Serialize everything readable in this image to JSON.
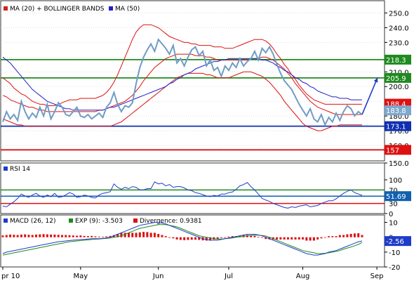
{
  "chart_data": [
    {
      "type": "line",
      "panel": "price",
      "legend": [
        {
          "label": "MA (20) + BOLLINGER BANDS",
          "color": "#d42020"
        },
        {
          "label": "MA (50)",
          "color": "#2020c8"
        }
      ],
      "ylim": [
        150,
        255
      ],
      "y_ticks": [
        "250.0",
        "240.0",
        "230.0",
        "220.0",
        "210.0",
        "200.0",
        "190.0",
        "180.0",
        "170.0",
        "160.0"
      ],
      "y_tick_values": [
        250,
        240,
        230,
        220,
        210,
        200,
        190,
        180,
        170,
        160
      ],
      "price_series": [
        176,
        183,
        178,
        181,
        177,
        190,
        183,
        178,
        182,
        179,
        186,
        180,
        188,
        178,
        183,
        189,
        186,
        181,
        180,
        183,
        186,
        180,
        179,
        181,
        178,
        180,
        182,
        179,
        186,
        189,
        196,
        188,
        183,
        187,
        186,
        189,
        202,
        213,
        220,
        225,
        229,
        224,
        232,
        229,
        226,
        222,
        228,
        216,
        219,
        214,
        220,
        225,
        227,
        221,
        224,
        214,
        218,
        211,
        213,
        207,
        214,
        211,
        216,
        213,
        219,
        214,
        217,
        219,
        224,
        218,
        226,
        223,
        227,
        222,
        215,
        209,
        204,
        201,
        198,
        193,
        188,
        184,
        180,
        185,
        178,
        176,
        181,
        174,
        179,
        176,
        182,
        177,
        183,
        187,
        185,
        180,
        183,
        181
      ],
      "ma20_series": [
        194,
        193,
        191,
        190,
        189,
        188,
        187,
        186,
        186,
        185,
        184,
        184,
        183,
        183,
        183,
        183,
        183,
        183,
        183,
        183,
        183,
        183,
        183,
        183,
        183,
        183,
        184,
        184,
        185,
        186,
        187,
        188,
        189,
        190,
        192,
        194,
        197,
        200,
        204,
        207,
        210,
        213,
        215,
        217,
        219,
        220,
        221,
        222,
        222,
        222,
        222,
        222,
        221,
        221,
        221,
        220,
        220,
        219,
        218,
        218,
        218,
        218,
        218,
        218,
        218,
        218,
        218,
        219,
        219,
        219,
        220,
        220,
        219,
        218,
        216,
        214,
        212,
        209,
        206,
        202,
        199,
        196,
        193,
        190,
        188,
        186,
        185,
        184,
        183,
        182,
        181,
        181,
        181,
        181,
        181,
        181,
        181,
        181
      ],
      "upper_band_series": [
        206,
        204,
        202,
        199,
        197,
        195,
        194,
        192,
        190,
        189,
        188,
        188,
        187,
        187,
        187,
        188,
        189,
        190,
        191,
        191,
        191,
        192,
        192,
        192,
        192,
        192,
        193,
        194,
        196,
        199,
        203,
        208,
        214,
        220,
        226,
        232,
        237,
        240,
        242,
        242,
        242,
        241,
        240,
        238,
        236,
        234,
        233,
        232,
        231,
        230,
        230,
        229,
        229,
        228,
        228,
        228,
        228,
        227,
        227,
        227,
        226,
        226,
        226,
        227,
        228,
        229,
        230,
        231,
        232,
        232,
        232,
        231,
        229,
        226,
        222,
        219,
        215,
        212,
        208,
        205,
        201,
        198,
        195,
        193,
        191,
        190,
        189,
        188,
        188,
        188,
        188,
        188,
        188,
        188,
        188,
        188,
        188,
        188
      ],
      "lower_band_series": [
        178,
        177,
        176,
        175,
        174,
        174,
        173,
        173,
        173,
        173,
        173,
        173,
        173,
        173,
        173,
        173,
        173,
        173,
        173,
        173,
        173,
        173,
        173,
        173,
        173,
        173,
        173,
        173,
        173,
        173,
        174,
        175,
        176,
        178,
        180,
        182,
        184,
        186,
        188,
        190,
        192,
        194,
        196,
        198,
        200,
        202,
        204,
        206,
        207,
        208,
        209,
        209,
        209,
        209,
        209,
        208,
        208,
        207,
        206,
        206,
        206,
        206,
        207,
        208,
        209,
        210,
        210,
        210,
        209,
        208,
        207,
        205,
        203,
        200,
        197,
        194,
        190,
        187,
        184,
        181,
        178,
        175,
        173,
        172,
        171,
        170,
        170,
        171,
        172,
        173,
        173,
        174,
        174,
        174,
        174,
        174,
        174,
        174
      ],
      "ma50_series": [
        220,
        218,
        216,
        213,
        210,
        207,
        204,
        201,
        198,
        196,
        194,
        192,
        190,
        189,
        188,
        187,
        186,
        185,
        185,
        184,
        184,
        184,
        184,
        184,
        184,
        184,
        184,
        184,
        185,
        186,
        186,
        187,
        188,
        189,
        190,
        191,
        192,
        193,
        194,
        195,
        196,
        197,
        198,
        199,
        200,
        202,
        203,
        205,
        206,
        208,
        209,
        210,
        212,
        213,
        214,
        215,
        216,
        217,
        217,
        218,
        218,
        219,
        219,
        219,
        219,
        219,
        219,
        219,
        219,
        219,
        218,
        218,
        217,
        216,
        214,
        213,
        211,
        210,
        208,
        206,
        205,
        203,
        202,
        200,
        199,
        197,
        196,
        195,
        194,
        193,
        193,
        192,
        192,
        192,
        191,
        191,
        191,
        191
      ],
      "levels": [
        {
          "value": 218.3,
          "label": "218.3",
          "color": "#1f8a1f"
        },
        {
          "value": 205.9,
          "label": "205.9",
          "color": "#1f8a1f"
        },
        {
          "value": 173.1,
          "label": "173.1",
          "color": "#1030b0"
        },
        {
          "value": 157,
          "label": "157",
          "color": "#dd1111"
        }
      ],
      "value_tags": [
        {
          "value": 188.4,
          "label": "188.4",
          "color": "#dd1111"
        },
        {
          "value": 183.8,
          "label": "183.8",
          "color": "#7ea7cc"
        }
      ],
      "forecast_arrow": {
        "from_value": 181,
        "to_value": 206
      }
    },
    {
      "type": "line",
      "panel": "rsi",
      "title": "RSI 14",
      "ylim": [
        0,
        150
      ],
      "y_ticks": [
        "150.0",
        "100",
        "50",
        "0"
      ],
      "y_tick_values": [
        150,
        100,
        50,
        0
      ],
      "series": [
        22,
        20,
        28,
        35,
        45,
        58,
        52,
        48,
        55,
        60,
        52,
        48,
        55,
        50,
        60,
        48,
        50,
        55,
        62,
        58,
        48,
        50,
        55,
        52,
        48,
        46,
        55,
        60,
        62,
        65,
        88,
        78,
        72,
        78,
        74,
        80,
        78,
        70,
        70,
        74,
        74,
        94,
        88,
        90,
        82,
        86,
        78,
        80,
        80,
        76,
        70,
        68,
        62,
        60,
        56,
        52,
        50,
        54,
        52,
        58,
        58,
        62,
        64,
        72,
        82,
        86,
        92,
        80,
        70,
        58,
        45,
        40,
        36,
        30,
        26,
        22,
        18,
        16,
        20,
        18,
        22,
        24,
        26,
        20,
        22,
        24,
        30,
        34,
        38,
        38,
        44,
        52,
        60,
        66,
        70,
        62,
        58,
        54
      ],
      "levels": [
        {
          "value": 70,
          "label": "70",
          "color": "#1f8a1f"
        },
        {
          "value": 30,
          "label": "30",
          "color": "#dd1111"
        }
      ],
      "value_tag": {
        "value": 51.69,
        "label": "51.69",
        "color": "#1060b0"
      }
    },
    {
      "type": "line",
      "panel": "macd",
      "legend": [
        {
          "label": "MACD (26, 12)",
          "color": "#1f3cc8"
        },
        {
          "label": "EXP (9): -3.503",
          "color": "#1f8a1f"
        },
        {
          "label": "Divergence: 0.9381",
          "color": "#dd1111"
        }
      ],
      "ylim": [
        -20,
        15
      ],
      "y_ticks": [
        "10",
        "0",
        "-10",
        "-20"
      ],
      "y_tick_values": [
        10,
        0,
        -10,
        -20
      ],
      "macd_series": [
        -11,
        -10,
        -9.5,
        -9,
        -8.5,
        -8,
        -7.5,
        -7,
        -6.5,
        -6,
        -5.5,
        -5,
        -4.5,
        -4,
        -3.5,
        -3,
        -2.8,
        -2.5,
        -2.2,
        -2,
        -1.8,
        -1.5,
        -1.5,
        -1.2,
        -1,
        -1,
        -1,
        -0.8,
        -0.5,
        0,
        1,
        2,
        3,
        4,
        5,
        6,
        7,
        8,
        8.5,
        9,
        9.5,
        10,
        10,
        9.5,
        9,
        8,
        7,
        6,
        5,
        4,
        3,
        2,
        1,
        0,
        -1,
        -1.5,
        -2,
        -2,
        -2,
        -1.5,
        -1,
        -0.5,
        0,
        0.5,
        1,
        1.5,
        2,
        2,
        2,
        1.5,
        1,
        0,
        -1,
        -2,
        -3,
        -4,
        -5,
        -6,
        -7,
        -8,
        -9,
        -10,
        -11,
        -11.5,
        -12,
        -12,
        -11.5,
        -11,
        -10,
        -9.5,
        -9,
        -8,
        -7,
        -6,
        -5,
        -4,
        -3,
        -2.5
      ],
      "signal_series": [
        -12,
        -11.5,
        -11,
        -10.5,
        -10,
        -9.5,
        -9,
        -8.5,
        -8,
        -7.5,
        -7,
        -6.5,
        -6,
        -5.5,
        -5,
        -4.5,
        -4,
        -3.5,
        -3,
        -2.8,
        -2.5,
        -2.2,
        -2,
        -1.8,
        -1.5,
        -1.3,
        -1.2,
        -1,
        -0.8,
        -0.5,
        0,
        0.5,
        1,
        2,
        3,
        4,
        5,
        6,
        6.5,
        7,
        7.5,
        8,
        8.5,
        8.5,
        8.5,
        8,
        7.5,
        7,
        6,
        5,
        4,
        3,
        2,
        1,
        0.5,
        0,
        -0.5,
        -1,
        -1.2,
        -1.2,
        -1,
        -0.8,
        -0.5,
        0,
        0.3,
        0.6,
        1,
        1.2,
        1.4,
        1.4,
        1.2,
        0.8,
        0,
        -1,
        -2,
        -3,
        -4,
        -5,
        -6,
        -7,
        -8,
        -9,
        -9.5,
        -10,
        -10.5,
        -11,
        -11,
        -10.8,
        -10.5,
        -10,
        -9.5,
        -9,
        -8,
        -7.3,
        -6.5,
        -5.7,
        -4.8,
        -3.5
      ],
      "divergence_series": [
        0.8,
        1,
        1.2,
        1.1,
        1,
        1.2,
        1.3,
        1.1,
        1,
        1.2,
        1.3,
        1.4,
        1.3,
        1.2,
        1.2,
        1.1,
        1,
        1,
        0.9,
        0.8,
        0.7,
        0.8,
        0.6,
        0.5,
        0.6,
        0.4,
        0.3,
        0.2,
        0.4,
        0.6,
        1,
        1.5,
        2,
        2,
        2,
        2,
        2,
        2.2,
        2.4,
        2.3,
        2,
        2,
        1.5,
        1,
        0.5,
        -0.2,
        -0.5,
        -1,
        -1.2,
        -1.3,
        -1.2,
        -1.1,
        -1.1,
        -1.2,
        -1.4,
        -1.5,
        -1.5,
        -1,
        -0.8,
        -0.3,
        0,
        0.3,
        0.5,
        0.5,
        0.7,
        0.9,
        1,
        0.8,
        0.6,
        0.1,
        -0.2,
        -0.8,
        -1,
        -1,
        -1,
        -1,
        -1,
        -1,
        -1,
        -1,
        -1,
        -1,
        -1.5,
        -1.5,
        -1.5,
        -1,
        -0.5,
        -0.2,
        0.5,
        0.5,
        0.5,
        1,
        1,
        1.3,
        1.5,
        1.7,
        1.8,
        1
      ],
      "value_tag": {
        "value": -2.56,
        "label": "-2.56",
        "color": "#1f3cc8"
      }
    }
  ],
  "x_axis": {
    "labels": [
      {
        "text": "pr 10",
        "index": 0
      },
      {
        "text": "May",
        "index": 21
      },
      {
        "text": "Jun",
        "index": 42
      },
      {
        "text": "Jul",
        "index": 61
      },
      {
        "text": "Aug",
        "index": 81
      },
      {
        "text": "Sep",
        "index": 101
      }
    ]
  },
  "colors": {
    "price_line": "#6f9cc6",
    "bollinger": "#dd1111",
    "ma50": "#2020c8",
    "grid": "#cccccc",
    "rsi_line": "#1f3cc8",
    "macd_line": "#1f3cc8",
    "signal_line": "#1f8a1f",
    "histogram": "#dd1111",
    "arrow": "#1f3cc8"
  }
}
